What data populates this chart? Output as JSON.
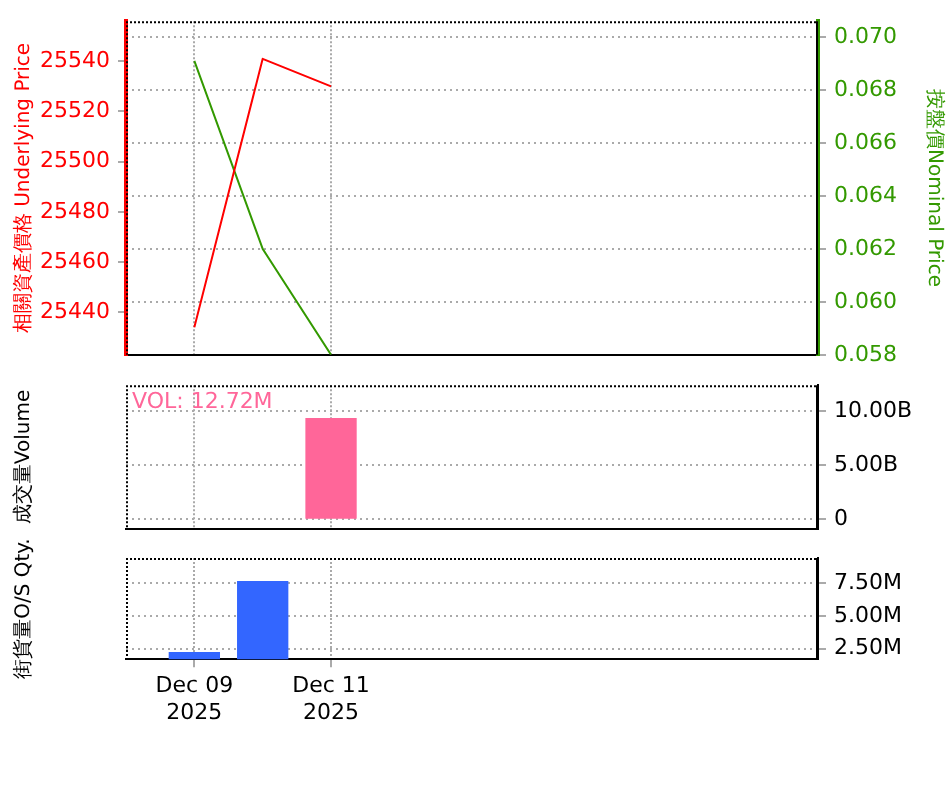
{
  "chart_data": [
    {
      "type": "line",
      "ylabel": "相關資產價格 Underlying Price",
      "y2label": "按盤價Nominal Price",
      "xlim": [
        "2025-12-08",
        "2025-12-18T03:00"
      ],
      "xticks": [
        "2025-12-09",
        "2025-12-11"
      ],
      "ylim": [
        25423,
        25556
      ],
      "yticks": [
        25440,
        25460,
        25480,
        25500,
        25520,
        25540
      ],
      "y2lim": [
        0.058,
        0.0706
      ],
      "y2ticks": [
        {
          "value": 0.058,
          "label": "0.058"
        },
        {
          "value": 0.06,
          "label": "0.060"
        },
        {
          "value": 0.062,
          "label": "0.062"
        },
        {
          "value": 0.064,
          "label": "0.064"
        },
        {
          "value": 0.066,
          "label": "0.066"
        },
        {
          "value": 0.068,
          "label": "0.068"
        },
        {
          "value": 0.07,
          "label": "0.070"
        }
      ],
      "grid": true,
      "legend": false,
      "tick_labels": "y",
      "series": [
        {
          "color": "#ff0000",
          "axis": "y",
          "x": [
            "2025-12-09",
            "2025-12-10",
            "2025-12-11"
          ],
          "values": [
            25434,
            25541,
            25530
          ]
        },
        {
          "color": "#339900",
          "axis": "y2",
          "x": [
            "2025-12-09",
            "2025-12-10",
            "2025-12-11"
          ],
          "values": [
            0.0691,
            0.062,
            0.058
          ]
        }
      ]
    },
    {
      "type": "bar",
      "ylabel": "成交量Volume",
      "annotations": [
        "VOL: 12.72M"
      ],
      "xlim": [
        "2025-12-08",
        "2025-12-18T03:00"
      ],
      "xticks": [
        "2025-12-09",
        "2025-12-11"
      ],
      "y2lim": [
        -900000000,
        12400000000
      ],
      "y2ticks": [
        {
          "value": 0,
          "label": "0"
        },
        {
          "value": 5000000000,
          "label": "5.00B"
        },
        {
          "value": 10000000000,
          "label": "10.00B"
        }
      ],
      "grid": true,
      "legend": false,
      "tick_labels": "y",
      "series": [
        {
          "color": "#ff6699",
          "axis": "y2",
          "x": [
            "2025-12-11"
          ],
          "values": [
            9300000000
          ]
        }
      ]
    },
    {
      "type": "bar",
      "ylabel": "街貨量O/S Qty.",
      "xlim": [
        "2025-12-08",
        "2025-12-18T03:00"
      ],
      "xticks": [
        {
          "value": "2025-12-09",
          "label": "Dec 09\n2025"
        },
        {
          "value": "2025-12-11",
          "label": "Dec 11\n2025"
        }
      ],
      "y2lim": [
        1700000,
        9400000
      ],
      "y2ticks": [
        {
          "value": 2500000,
          "label": "2.50M"
        },
        {
          "value": 5000000,
          "label": "5.00M"
        },
        {
          "value": 7500000,
          "label": "7.50M"
        }
      ],
      "grid": true,
      "legend": false,
      "series": [
        {
          "color": "#3366ff",
          "axis": "y2",
          "x": [
            "2025-12-09",
            "2025-12-10"
          ],
          "values": [
            2200000,
            7600000
          ]
        }
      ]
    }
  ]
}
